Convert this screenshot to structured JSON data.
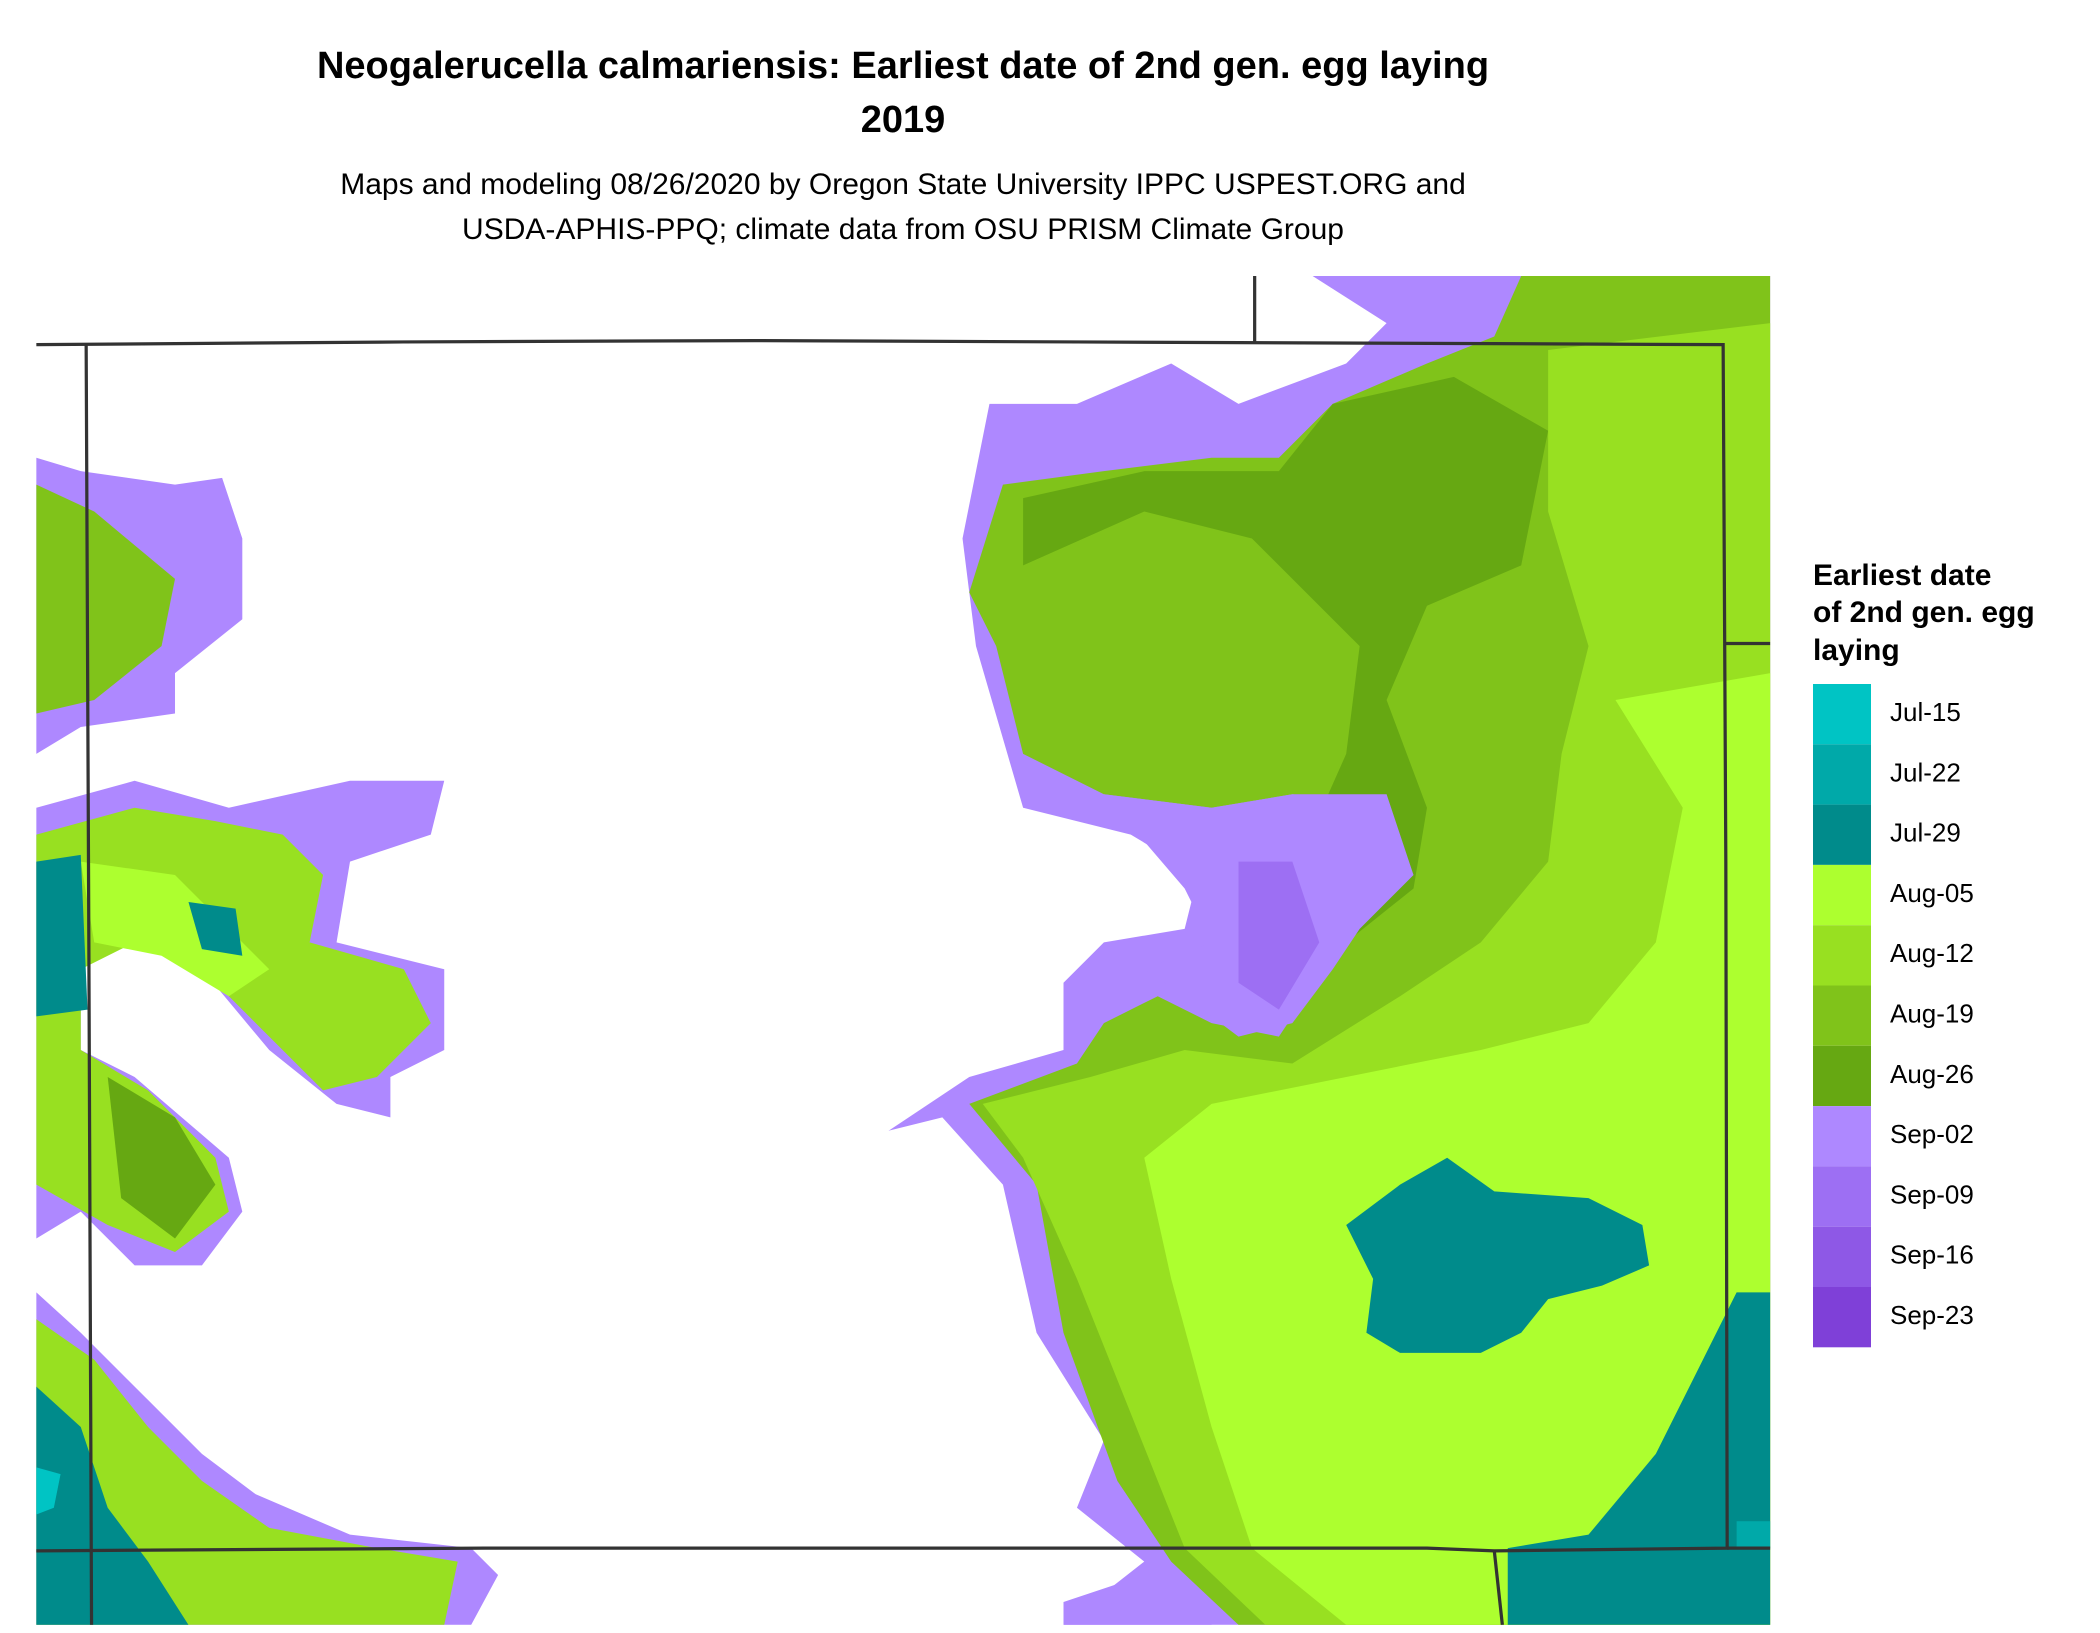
{
  "header": {
    "title": "Neogalerucella calmariensis: Earliest date of 2nd gen. egg laying",
    "year": "2019",
    "subtitle": [
      "Maps and modeling 08/26/2020 by Oregon State University IPPC USPEST.ORG and",
      "USDA-APHIS-PPQ; climate data from OSU PRISM Climate Group"
    ]
  },
  "legend": {
    "title": [
      "Earliest date",
      "of 2nd gen. egg",
      "laying"
    ],
    "items": [
      {
        "label": "Jul-15",
        "color": "#00c4c4"
      },
      {
        "label": "Jul-22",
        "color": "#00a9a9"
      },
      {
        "label": "Jul-29",
        "color": "#008b8b"
      },
      {
        "label": "Aug-05",
        "color": "#adff2f"
      },
      {
        "label": "Aug-12",
        "color": "#98e021"
      },
      {
        "label": "Aug-19",
        "color": "#80c31a"
      },
      {
        "label": "Aug-26",
        "color": "#66a812"
      },
      {
        "label": "Sep-02",
        "color": "#ae88ff"
      },
      {
        "label": "Sep-09",
        "color": "#9d6ff3"
      },
      {
        "label": "Sep-16",
        "color": "#8e58e6"
      },
      {
        "label": "Sep-23",
        "color": "#7f40d8"
      }
    ]
  }
}
